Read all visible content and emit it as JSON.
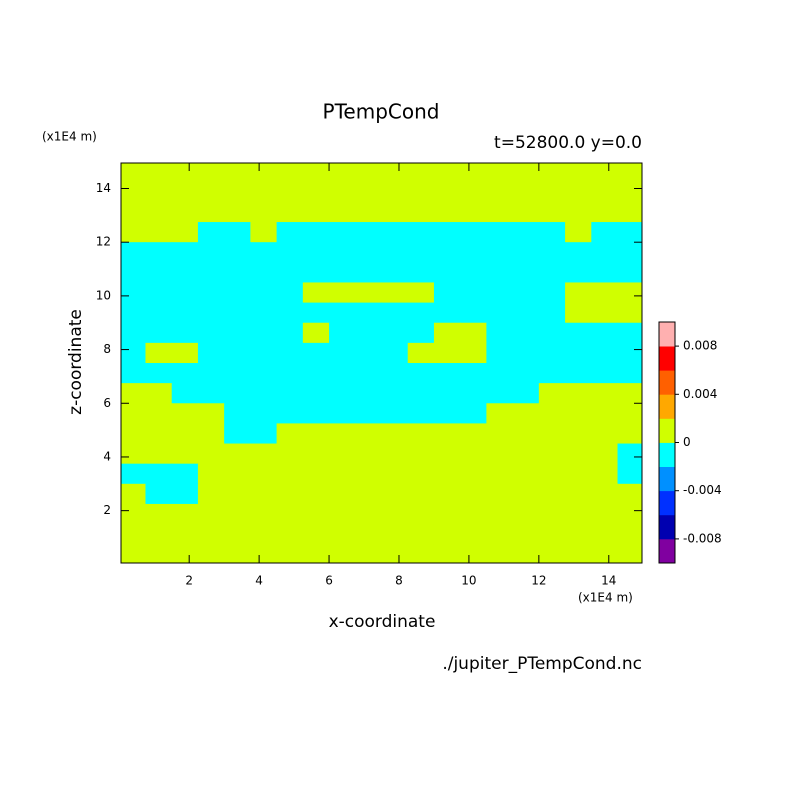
{
  "chart_data": {
    "type": "contour",
    "title": "PTempCond",
    "subtitle": "t=52800.0 y=0.0",
    "x_label": "x-coordinate",
    "y_label": "z-coordinate",
    "x_unit": "(x1E4 m)",
    "y_unit": "(x1E4 m)",
    "source": "./jupiter_PTempCond.nc",
    "xlim": [
      0.05,
      14.95
    ],
    "ylim": [
      0.05,
      14.95
    ],
    "xticks": [
      2,
      4,
      6,
      8,
      10,
      12,
      14
    ],
    "yticks": [
      2,
      4,
      6,
      8,
      10,
      12,
      14
    ],
    "x": [
      0.375,
      1.125,
      1.875,
      2.625,
      3.375,
      4.125,
      4.875,
      5.625,
      6.375,
      7.125,
      7.875,
      8.625,
      9.375,
      10.125,
      10.875,
      11.625,
      12.375,
      13.125,
      13.875,
      14.625
    ],
    "y": [
      14.625,
      13.875,
      13.125,
      12.375,
      11.625,
      10.875,
      10.125,
      9.375,
      8.625,
      7.875,
      7.125,
      6.375,
      5.625,
      4.875,
      4.125,
      3.375,
      2.625,
      1.875,
      1.125,
      0.375
    ],
    "z": [
      [
        0.001,
        0.001,
        0.001,
        0.001,
        0.001,
        0.001,
        0.001,
        0.001,
        0.001,
        0.001,
        0.001,
        0.001,
        0.001,
        0.001,
        0.001,
        0.001,
        0.001,
        0.001,
        0.001,
        0.001
      ],
      [
        0.001,
        0.001,
        0.001,
        0.001,
        0.001,
        0.001,
        0.001,
        0.001,
        0.001,
        0.001,
        0.001,
        0.001,
        0.001,
        0.001,
        0.001,
        0.001,
        0.001,
        0.001,
        0.001,
        0.001
      ],
      [
        0.001,
        0.001,
        0.001,
        0.001,
        0.001,
        0.001,
        0.001,
        0.001,
        0.001,
        0.001,
        0.001,
        0.001,
        0.001,
        0.001,
        0.001,
        0.001,
        0.001,
        0.001,
        0.001,
        0.001
      ],
      [
        0.001,
        0.001,
        0.001,
        -0.001,
        -0.001,
        0.001,
        -0.001,
        -0.001,
        -0.001,
        -0.001,
        -0.001,
        -0.001,
        -0.001,
        -0.001,
        -0.001,
        -0.001,
        -0.001,
        0.001,
        -0.001,
        -0.001
      ],
      [
        -0.001,
        -0.001,
        -0.001,
        -0.001,
        -0.001,
        -0.001,
        -0.001,
        -0.001,
        -0.001,
        -0.001,
        -0.001,
        -0.001,
        -0.001,
        -0.001,
        -0.001,
        -0.001,
        -0.001,
        -0.001,
        -0.001,
        -0.001
      ],
      [
        -0.001,
        -0.001,
        -0.001,
        -0.001,
        -0.001,
        -0.001,
        -0.001,
        -0.001,
        -0.001,
        -0.001,
        -0.001,
        -0.001,
        -0.001,
        -0.001,
        -0.001,
        -0.001,
        -0.001,
        -0.001,
        -0.001,
        -0.001
      ],
      [
        -0.001,
        -0.001,
        -0.001,
        -0.001,
        -0.001,
        -0.001,
        -0.001,
        0.001,
        0.001,
        0.001,
        0.001,
        0.001,
        -0.001,
        -0.001,
        -0.001,
        -0.001,
        -0.001,
        0.001,
        0.001,
        0.001
      ],
      [
        -0.001,
        -0.001,
        -0.001,
        -0.001,
        -0.001,
        -0.001,
        -0.001,
        -0.001,
        -0.001,
        -0.001,
        -0.001,
        -0.001,
        -0.001,
        -0.001,
        -0.001,
        -0.001,
        -0.001,
        0.001,
        0.001,
        0.001
      ],
      [
        -0.001,
        -0.001,
        -0.001,
        -0.001,
        -0.001,
        -0.001,
        -0.001,
        0.001,
        -0.001,
        -0.001,
        -0.001,
        -0.001,
        0.001,
        0.001,
        -0.001,
        -0.001,
        -0.001,
        -0.001,
        -0.001,
        -0.001
      ],
      [
        -0.001,
        0.001,
        0.001,
        -0.001,
        -0.001,
        -0.001,
        -0.001,
        -0.001,
        -0.001,
        -0.001,
        -0.001,
        0.001,
        0.001,
        0.001,
        -0.001,
        -0.001,
        -0.001,
        -0.001,
        -0.001,
        -0.001
      ],
      [
        -0.001,
        -0.001,
        -0.001,
        -0.001,
        -0.001,
        -0.001,
        -0.001,
        -0.001,
        -0.001,
        -0.001,
        -0.001,
        -0.001,
        -0.001,
        -0.001,
        -0.001,
        -0.001,
        -0.001,
        -0.001,
        -0.001,
        -0.001
      ],
      [
        0.001,
        0.001,
        -0.001,
        -0.001,
        -0.001,
        -0.001,
        -0.001,
        -0.001,
        -0.001,
        -0.001,
        -0.001,
        -0.001,
        -0.001,
        -0.001,
        -0.001,
        -0.001,
        0.001,
        0.001,
        0.001,
        0.001
      ],
      [
        0.001,
        0.001,
        0.001,
        0.001,
        -0.001,
        -0.001,
        -0.001,
        -0.001,
        -0.001,
        -0.001,
        -0.001,
        -0.001,
        -0.001,
        -0.001,
        0.001,
        0.001,
        0.001,
        0.001,
        0.001,
        0.001
      ],
      [
        0.001,
        0.001,
        0.001,
        0.001,
        -0.001,
        -0.001,
        0.001,
        0.001,
        0.001,
        0.001,
        0.001,
        0.001,
        0.001,
        0.001,
        0.001,
        0.001,
        0.001,
        0.001,
        0.001,
        0.001
      ],
      [
        0.001,
        0.001,
        0.001,
        0.001,
        0.001,
        0.001,
        0.001,
        0.001,
        0.001,
        0.001,
        0.001,
        0.001,
        0.001,
        0.001,
        0.001,
        0.001,
        0.001,
        0.001,
        0.001,
        -0.001
      ],
      [
        -0.001,
        -0.001,
        -0.001,
        0.001,
        0.001,
        0.001,
        0.001,
        0.001,
        0.001,
        0.001,
        0.001,
        0.001,
        0.001,
        0.001,
        0.001,
        0.001,
        0.001,
        0.001,
        0.001,
        -0.001
      ],
      [
        0.001,
        -0.001,
        -0.001,
        0.001,
        0.001,
        0.001,
        0.001,
        0.001,
        0.001,
        0.001,
        0.001,
        0.001,
        0.001,
        0.001,
        0.001,
        0.001,
        0.001,
        0.001,
        0.001,
        0.001
      ],
      [
        0.001,
        0.001,
        0.001,
        0.001,
        0.001,
        0.001,
        0.001,
        0.001,
        0.001,
        0.001,
        0.001,
        0.001,
        0.001,
        0.001,
        0.001,
        0.001,
        0.001,
        0.001,
        0.001,
        0.001
      ],
      [
        0.001,
        0.001,
        0.001,
        0.001,
        0.001,
        0.001,
        0.001,
        0.001,
        0.001,
        0.001,
        0.001,
        0.001,
        0.001,
        0.001,
        0.001,
        0.001,
        0.001,
        0.001,
        0.001,
        0.001
      ],
      [
        0.001,
        0.001,
        0.001,
        0.001,
        0.001,
        0.001,
        0.001,
        0.001,
        0.001,
        0.001,
        0.001,
        0.001,
        0.001,
        0.001,
        0.001,
        0.001,
        0.001,
        0.001,
        0.001,
        0.001
      ]
    ],
    "colorbar": {
      "lim": [
        -0.01,
        0.01
      ],
      "ticks": [
        0.008,
        0.004,
        0,
        -0.004,
        -0.008
      ],
      "colors": [
        "#8000a0",
        "#0000b0",
        "#0030ff",
        "#0090ff",
        "#00ffff",
        "#d0ff00",
        "#ffa800",
        "#ff6000",
        "#ff0000",
        "#ffb0b0"
      ]
    }
  }
}
